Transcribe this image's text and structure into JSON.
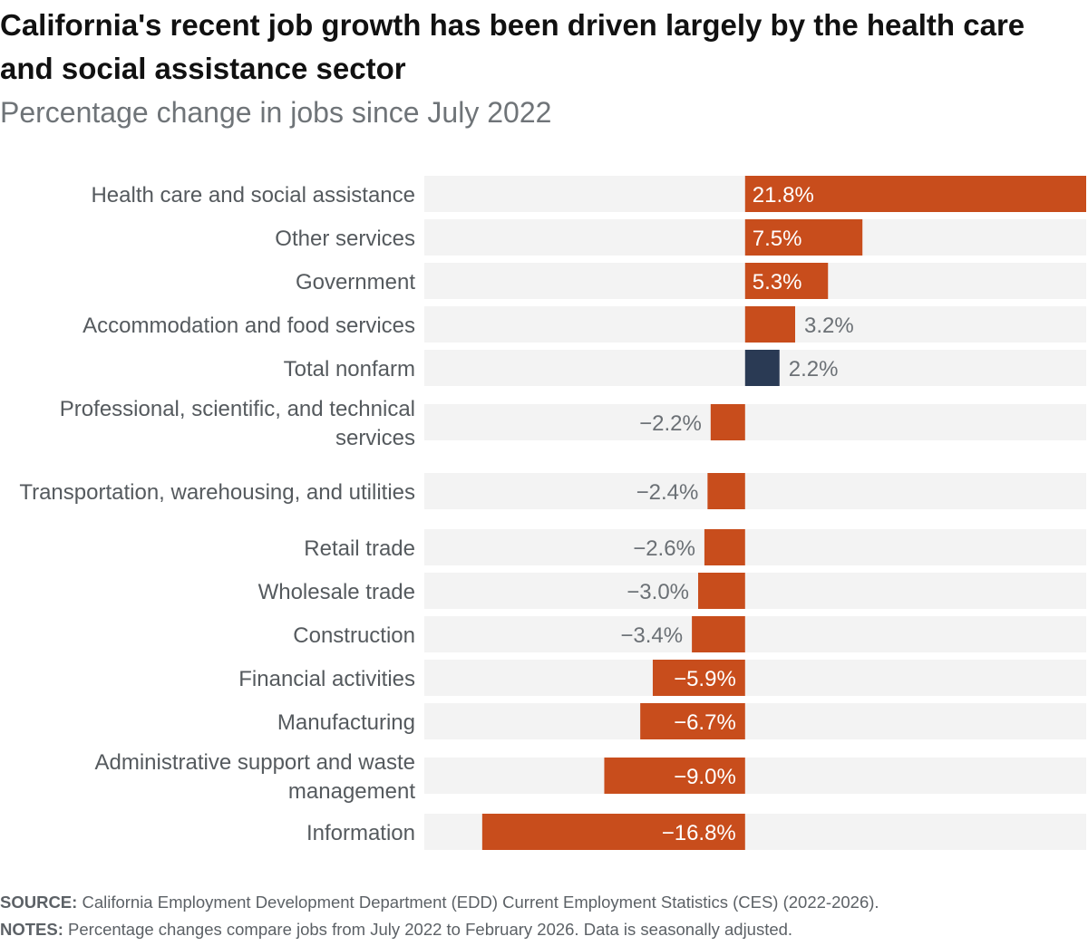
{
  "title": "California's recent job growth has been driven largely by the health care and social assistance sector",
  "subtitle": "Percentage change in jobs since July 2022",
  "colors": {
    "positive_bar": "#c84d1c",
    "total_bar": "#2a3a54",
    "row_background": "#f3f3f3",
    "label_inside": "#ffffff",
    "label_outside": "#6b7075"
  },
  "chart_data": {
    "type": "bar",
    "orientation": "horizontal",
    "categories": [
      "Health care and social assistance",
      "Other services",
      "Government",
      "Accommodation and food services",
      "Total nonfarm",
      "Professional, scientific, and technical services",
      "Transportation, warehousing, and utilities",
      "Retail trade",
      "Wholesale trade",
      "Construction",
      "Financial activities",
      "Manufacturing",
      "Administrative support and waste management",
      "Information"
    ],
    "values": [
      21.8,
      7.5,
      5.3,
      3.2,
      2.2,
      -2.2,
      -2.4,
      -2.6,
      -3.0,
      -3.4,
      -5.9,
      -6.7,
      -9.0,
      -16.8
    ],
    "value_labels": [
      "21.8%",
      "7.5%",
      "5.3%",
      "3.2%",
      "2.2%",
      "−2.2%",
      "−2.4%",
      "−2.6%",
      "−3.0%",
      "−3.4%",
      "−5.9%",
      "−6.7%",
      "−9.0%",
      "−16.8%"
    ],
    "highlight": "Total nonfarm",
    "xlim": [
      -20.5,
      21.8
    ],
    "xlabel": "",
    "ylabel": "",
    "grid": false,
    "legend": "none"
  },
  "footer": {
    "source_label": "SOURCE:",
    "source_text": " California Employment Development Department (EDD) Current Employment Statistics (CES) (2022-2026).",
    "notes_label": "NOTES:",
    "notes_text": " Percentage changes compare jobs from July 2022 to February 2026. Data is seasonally adjusted."
  }
}
